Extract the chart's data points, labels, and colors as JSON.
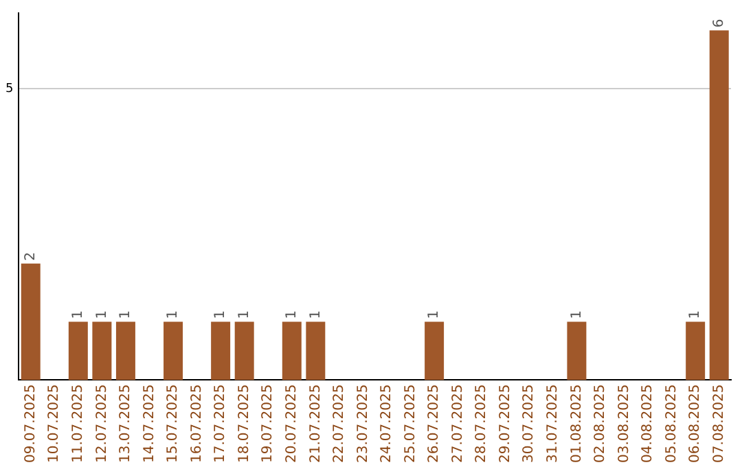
{
  "chart_data": {
    "type": "bar",
    "categories": [
      "09.07.2025",
      "10.07.2025",
      "11.07.2025",
      "12.07.2025",
      "13.07.2025",
      "14.07.2025",
      "15.07.2025",
      "16.07.2025",
      "17.07.2025",
      "18.07.2025",
      "19.07.2025",
      "20.07.2025",
      "21.07.2025",
      "22.07.2025",
      "23.07.2025",
      "24.07.2025",
      "25.07.2025",
      "26.07.2025",
      "27.07.2025",
      "28.07.2025",
      "29.07.2025",
      "30.07.2025",
      "31.07.2025",
      "01.08.2025",
      "02.08.2025",
      "03.08.2025",
      "04.08.2025",
      "05.08.2025",
      "06.08.2025",
      "07.08.2025"
    ],
    "values": [
      2,
      0,
      1,
      1,
      1,
      0,
      1,
      0,
      1,
      1,
      0,
      1,
      1,
      0,
      0,
      0,
      0,
      1,
      0,
      0,
      0,
      0,
      0,
      1,
      0,
      0,
      0,
      0,
      1,
      6
    ],
    "value_labels": [
      "2",
      null,
      "1",
      "1",
      "1",
      null,
      "1",
      null,
      "1",
      "1",
      null,
      "1",
      "1",
      null,
      null,
      null,
      null,
      "1",
      null,
      null,
      null,
      null,
      null,
      "1",
      null,
      null,
      null,
      null,
      "1",
      "6"
    ],
    "color": "#a0582a",
    "ylim": [
      0,
      6.3
    ],
    "yticks": [
      5
    ],
    "grid": "y",
    "legend": false
  }
}
